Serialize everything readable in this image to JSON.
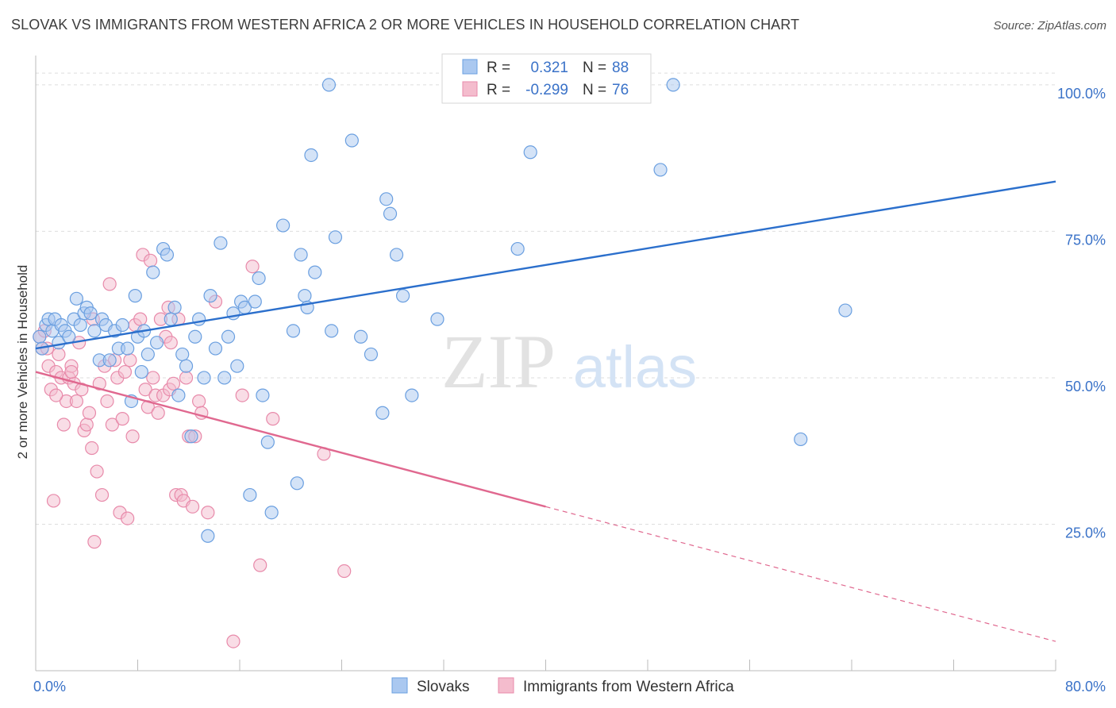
{
  "title": "SLOVAK VS IMMIGRANTS FROM WESTERN AFRICA 2 OR MORE VEHICLES IN HOUSEHOLD CORRELATION CHART",
  "source": "Source: ZipAtlas.com",
  "watermark": {
    "zip": "ZIP",
    "atlas": "atlas"
  },
  "colors": {
    "blue": "#6a9fe0",
    "blue_fill": "#aac8f0",
    "blue_line": "#2b6fcc",
    "pink": "#e88aaa",
    "pink_fill": "#f4bccd",
    "pink_line": "#e0688f",
    "axis_label": "#3a72c8",
    "grid": "#dddddd"
  },
  "legend_top": [
    {
      "r_label": "R =",
      "r_value": "0.321",
      "n_label": "N =",
      "n_value": "88",
      "color": "blue"
    },
    {
      "r_label": "R =",
      "r_value": "-0.299",
      "n_label": "N =",
      "n_value": "76",
      "color": "pink"
    }
  ],
  "legend_bottom": [
    {
      "label": "Slovaks",
      "color": "blue"
    },
    {
      "label": "Immigrants from Western Africa",
      "color": "pink"
    }
  ],
  "chart_data": {
    "type": "scatter",
    "xlabel": "",
    "ylabel": "2 or more Vehicles in Household",
    "xlim": [
      0,
      80
    ],
    "ylim": [
      0,
      105
    ],
    "x_tick_labels": [
      "0.0%",
      "80.0%"
    ],
    "y_ticks": [
      25,
      50,
      75,
      100
    ],
    "y_tick_labels": [
      "25.0%",
      "50.0%",
      "75.0%",
      "100.0%"
    ],
    "grid": "horizontal dashed",
    "legend": "top-center",
    "series": [
      {
        "name": "Slovaks",
        "color": "blue",
        "trend": {
          "x": [
            0,
            80
          ],
          "y": [
            55,
            83.5
          ],
          "dashed_from": null
        },
        "points": [
          [
            0.3,
            57
          ],
          [
            0.5,
            55
          ],
          [
            0.8,
            59
          ],
          [
            1,
            60
          ],
          [
            1.3,
            58
          ],
          [
            1.5,
            60
          ],
          [
            1.8,
            56
          ],
          [
            2,
            59
          ],
          [
            2.3,
            58
          ],
          [
            2.6,
            57
          ],
          [
            3,
            60
          ],
          [
            3.2,
            63.5
          ],
          [
            3.5,
            59
          ],
          [
            3.8,
            61
          ],
          [
            4,
            62
          ],
          [
            4.3,
            61
          ],
          [
            4.6,
            58
          ],
          [
            5,
            53
          ],
          [
            5.2,
            60
          ],
          [
            5.5,
            59
          ],
          [
            5.8,
            53
          ],
          [
            6.2,
            58
          ],
          [
            6.5,
            55
          ],
          [
            6.8,
            59
          ],
          [
            7.2,
            55
          ],
          [
            7.5,
            46
          ],
          [
            7.8,
            64
          ],
          [
            8,
            57
          ],
          [
            8.3,
            51
          ],
          [
            8.5,
            58
          ],
          [
            8.8,
            54
          ],
          [
            9.2,
            68
          ],
          [
            9.5,
            56
          ],
          [
            10,
            72
          ],
          [
            10.3,
            71
          ],
          [
            10.6,
            60
          ],
          [
            10.9,
            62
          ],
          [
            11.2,
            47
          ],
          [
            11.5,
            54
          ],
          [
            11.8,
            52
          ],
          [
            12.2,
            40
          ],
          [
            12.5,
            57
          ],
          [
            12.8,
            60
          ],
          [
            13.2,
            50
          ],
          [
            13.5,
            23
          ],
          [
            13.7,
            64
          ],
          [
            14.1,
            55
          ],
          [
            14.5,
            73
          ],
          [
            14.8,
            50
          ],
          [
            15.1,
            57
          ],
          [
            15.5,
            61
          ],
          [
            15.8,
            52
          ],
          [
            16.1,
            63
          ],
          [
            16.4,
            62
          ],
          [
            16.8,
            30
          ],
          [
            17.2,
            63
          ],
          [
            17.5,
            67
          ],
          [
            17.8,
            47
          ],
          [
            18.2,
            39
          ],
          [
            18.5,
            27
          ],
          [
            19.4,
            76
          ],
          [
            20.2,
            58
          ],
          [
            20.5,
            32
          ],
          [
            20.8,
            71
          ],
          [
            21.1,
            64
          ],
          [
            21.3,
            62
          ],
          [
            21.6,
            88
          ],
          [
            21.9,
            68
          ],
          [
            23.2,
            58
          ],
          [
            23.5,
            74
          ],
          [
            23,
            100
          ],
          [
            24.8,
            90.5
          ],
          [
            25.5,
            57
          ],
          [
            26.3,
            54
          ],
          [
            27.2,
            44
          ],
          [
            27.5,
            80.5
          ],
          [
            27.8,
            78
          ],
          [
            28.3,
            71
          ],
          [
            28.8,
            64
          ],
          [
            29.5,
            47
          ],
          [
            31.5,
            60
          ],
          [
            37.8,
            72
          ],
          [
            38.2,
            100
          ],
          [
            38.8,
            88.5
          ],
          [
            49,
            85.5
          ],
          [
            50,
            100
          ],
          [
            60,
            39.5
          ],
          [
            63.5,
            61.5
          ]
        ]
      },
      {
        "name": "Immigrants from Western Africa",
        "color": "pink",
        "trend": {
          "x": [
            0,
            80
          ],
          "y": [
            51,
            5
          ],
          "dashed_from": 40
        },
        "points": [
          [
            0.3,
            57
          ],
          [
            0.5,
            55
          ],
          [
            0.7,
            58
          ],
          [
            1,
            52
          ],
          [
            1.2,
            48
          ],
          [
            1.4,
            29
          ],
          [
            1.6,
            51
          ],
          [
            1.8,
            54
          ],
          [
            2,
            50
          ],
          [
            2.2,
            42
          ],
          [
            2.4,
            46
          ],
          [
            2.6,
            50
          ],
          [
            2.8,
            52
          ],
          [
            3,
            49
          ],
          [
            3.2,
            46
          ],
          [
            3.4,
            56
          ],
          [
            3.6,
            48
          ],
          [
            3.8,
            41
          ],
          [
            4,
            42
          ],
          [
            4.2,
            44
          ],
          [
            4.4,
            38
          ],
          [
            4.5,
            60
          ],
          [
            4.6,
            22
          ],
          [
            4.8,
            34
          ],
          [
            5,
            49
          ],
          [
            5.2,
            30
          ],
          [
            5.4,
            52
          ],
          [
            5.6,
            46
          ],
          [
            5.8,
            66
          ],
          [
            6,
            42
          ],
          [
            6.2,
            53
          ],
          [
            6.4,
            50
          ],
          [
            6.6,
            27
          ],
          [
            6.8,
            43
          ],
          [
            7,
            51
          ],
          [
            7.2,
            26
          ],
          [
            7.4,
            53
          ],
          [
            7.6,
            40
          ],
          [
            7.8,
            59
          ],
          [
            8.2,
            60
          ],
          [
            8.4,
            71
          ],
          [
            8.6,
            48
          ],
          [
            8.8,
            45
          ],
          [
            9,
            70
          ],
          [
            9.2,
            50
          ],
          [
            9.4,
            47
          ],
          [
            9.6,
            44
          ],
          [
            9.8,
            60
          ],
          [
            10,
            47
          ],
          [
            10.2,
            57
          ],
          [
            10.4,
            62
          ],
          [
            10.5,
            48
          ],
          [
            10.6,
            56
          ],
          [
            10.8,
            49
          ],
          [
            11,
            30
          ],
          [
            11.2,
            60
          ],
          [
            11.4,
            30
          ],
          [
            11.6,
            29
          ],
          [
            11.8,
            50
          ],
          [
            12,
            40
          ],
          [
            12.3,
            28
          ],
          [
            12.5,
            40
          ],
          [
            12.8,
            46
          ],
          [
            13,
            44
          ],
          [
            13.5,
            27
          ],
          [
            14.1,
            63
          ],
          [
            15.5,
            5
          ],
          [
            16.2,
            47
          ],
          [
            17,
            69
          ],
          [
            17.6,
            18
          ],
          [
            18.6,
            43
          ],
          [
            22.6,
            37
          ],
          [
            24.2,
            17
          ],
          [
            2.8,
            51
          ],
          [
            1.6,
            47
          ],
          [
            0.9,
            55
          ]
        ]
      }
    ]
  }
}
